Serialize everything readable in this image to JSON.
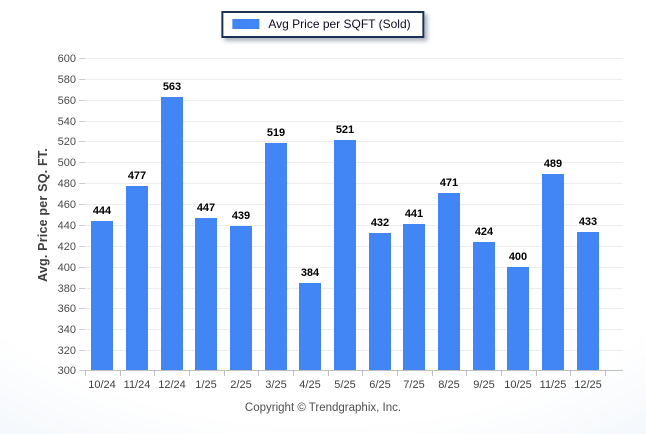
{
  "legend": {
    "label": "Avg Price per SQFT (Sold)",
    "swatch_color": "#4285f4"
  },
  "footer": {
    "copyright": "Copyright © Trendgraphix, Inc."
  },
  "chart_data": {
    "type": "bar",
    "title": "",
    "series_name": "Avg Price per SQFT (Sold)",
    "categories": [
      "10/24",
      "11/24",
      "12/24",
      "1/25",
      "2/25",
      "3/25",
      "4/25",
      "5/25",
      "6/25",
      "7/25",
      "8/25",
      "9/25",
      "10/25",
      "11/25",
      "12/25"
    ],
    "values": [
      444,
      477,
      563,
      447,
      439,
      519,
      384,
      521,
      432,
      441,
      471,
      424,
      400,
      489,
      433
    ],
    "xlabel": "",
    "ylabel": "Avg. Price per SQ. FT.",
    "ylim": [
      300,
      600
    ],
    "ytick_step": 20,
    "bar_color": "#4285f4",
    "grid": true,
    "grid_color": "#ededed",
    "axis_color": "#bfbfbf",
    "legend_position": "top-center"
  }
}
